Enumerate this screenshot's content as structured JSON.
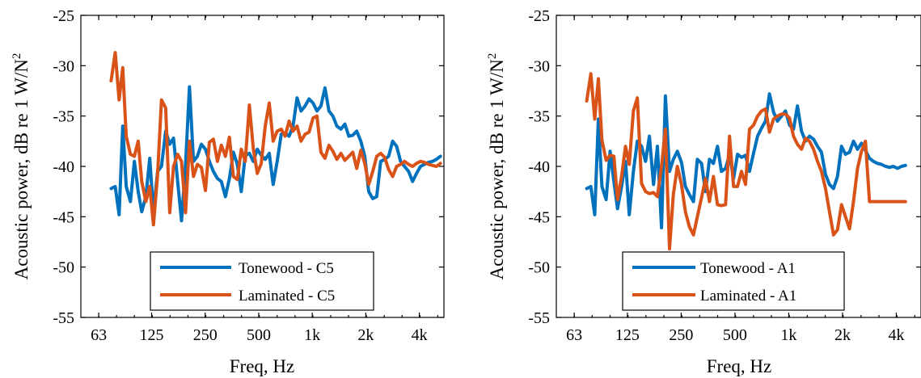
{
  "colors": {
    "tonewood": "#0072BD",
    "laminated": "#D95319"
  },
  "chart_data": [
    {
      "type": "line",
      "xscale": "log",
      "xlabel": "Freq, Hz",
      "ylabel": "Acoustic power, dB re 1 W/N",
      "ylabel_superscript": "2",
      "xlim": [
        50,
        5500
      ],
      "ylim": [
        -55,
        -25
      ],
      "xticks": [
        63,
        125,
        250,
        500,
        1000,
        2000,
        4000
      ],
      "xtick_labels": [
        "63",
        "125",
        "250",
        "500",
        "1k",
        "2k",
        "4k"
      ],
      "yticks": [
        -55,
        -50,
        -45,
        -40,
        -35,
        -30,
        -25
      ],
      "ytick_labels": [
        "-55",
        "-50",
        "-45",
        "-40",
        "-35",
        "-30",
        "-25"
      ],
      "grid": false,
      "legend_position": "bottom-center",
      "series": [
        {
          "name": "Tonewood - C5",
          "color": "#0072BD",
          "x": [
            74,
            78,
            82,
            86,
            90,
            95,
            100,
            105,
            110,
            116,
            122,
            128,
            135,
            142,
            150,
            158,
            166,
            175,
            184,
            194,
            204,
            215,
            226,
            238,
            251,
            264,
            278,
            293,
            308,
            325,
            342,
            360,
            379,
            399,
            420,
            443,
            466,
            491,
            517,
            544,
            573,
            603,
            635,
            669,
            704,
            741,
            780,
            822,
            865,
            911,
            959,
            1010,
            1063,
            1119,
            1179,
            1241,
            1307,
            1376,
            1449,
            1525,
            1606,
            1691,
            1780,
            1875,
            1974,
            2078,
            2188,
            2304,
            2426,
            2554,
            2689,
            2832,
            2981,
            3139,
            3305,
            3480,
            3664,
            3858,
            4062,
            4277,
            4503,
            4741,
            4992,
            5256
          ],
          "y": [
            -42.2,
            -42.0,
            -44.8,
            -36.0,
            -42.0,
            -43.5,
            -39.5,
            -42.5,
            -44.5,
            -43.0,
            -39.2,
            -44.5,
            -40.5,
            -40.0,
            -36.5,
            -37.8,
            -37.2,
            -41.5,
            -45.4,
            -39.8,
            -32.1,
            -39.5,
            -39.0,
            -37.8,
            -38.3,
            -39.5,
            -40.5,
            -41.2,
            -41.5,
            -43.0,
            -41.2,
            -38.6,
            -39.8,
            -42.5,
            -38.9,
            -38.7,
            -39.5,
            -38.3,
            -38.9,
            -39.3,
            -38.7,
            -41.8,
            -39.5,
            -36.8,
            -36.7,
            -37.0,
            -36.0,
            -33.2,
            -34.5,
            -34.0,
            -33.3,
            -33.7,
            -34.5,
            -34.0,
            -32.2,
            -34.5,
            -35.0,
            -36.0,
            -36.3,
            -35.8,
            -37.0,
            -36.9,
            -36.5,
            -37.5,
            -39.0,
            -42.5,
            -43.2,
            -43.0,
            -39.5,
            -39.3,
            -39.0,
            -37.5,
            -38.0,
            -39.5,
            -40.0,
            -40.5,
            -41.5,
            -40.7,
            -40.0,
            -39.8,
            -39.6,
            -39.5,
            -39.3,
            -39.0
          ],
          "_note_unused": null
        },
        {
          "name": "Laminated - C5",
          "color": "#D95319",
          "x": [
            74,
            78,
            82,
            86,
            90,
            95,
            100,
            105,
            110,
            116,
            122,
            128,
            135,
            142,
            150,
            158,
            166,
            175,
            184,
            194,
            204,
            215,
            226,
            238,
            251,
            264,
            278,
            293,
            308,
            325,
            342,
            360,
            379,
            399,
            420,
            443,
            466,
            491,
            517,
            544,
            573,
            603,
            635,
            669,
            704,
            741,
            780,
            822,
            865,
            911,
            959,
            1010,
            1063,
            1119,
            1179,
            1241,
            1307,
            1376,
            1449,
            1525,
            1606,
            1691,
            1780,
            1875,
            1974,
            2078,
            2188,
            2304,
            2426,
            2554,
            2689,
            2832,
            2981,
            3139,
            3305,
            3480,
            3664,
            3858,
            4062,
            4277,
            4503,
            4741,
            4992,
            5256
          ],
          "y": [
            -31.5,
            -28.7,
            -33.4,
            -30.2,
            -37.0,
            -38.8,
            -39.0,
            -37.5,
            -41.5,
            -43.5,
            -42.0,
            -45.8,
            -40.8,
            -33.4,
            -34.2,
            -44.6,
            -40.0,
            -38.8,
            -39.5,
            -44.6,
            -37.5,
            -41.0,
            -39.8,
            -40.1,
            -42.4,
            -37.6,
            -37.3,
            -39.5,
            -37.9,
            -39.0,
            -37.1,
            -41.0,
            -41.3,
            -38.3,
            -39.5,
            -33.9,
            -38.2,
            -40.7,
            -39.7,
            -36.0,
            -33.7,
            -37.5,
            -36.5,
            -36.3,
            -37.0,
            -35.5,
            -36.5,
            -36.0,
            -37.5,
            -36.8,
            -36.6,
            -35.2,
            -35.0,
            -38.6,
            -39.2,
            -37.9,
            -38.5,
            -39.3,
            -38.7,
            -39.4,
            -39.0,
            -38.6,
            -40.2,
            -38.4,
            -39.7,
            -41.8,
            -40.5,
            -39.0,
            -38.7,
            -39.1,
            -40.3,
            -41.0,
            -40.0,
            -39.8,
            -39.5,
            -39.8,
            -40.0,
            -39.7,
            -39.5,
            -39.6,
            -39.8,
            -39.9,
            -40.0,
            -39.7
          ]
        }
      ]
    },
    {
      "type": "line",
      "xscale": "log",
      "xlabel": "Freq, Hz",
      "ylabel": "Acoustic power, dB re 1 W/N",
      "ylabel_superscript": "2",
      "xlim": [
        50,
        5500
      ],
      "ylim": [
        -55,
        -25
      ],
      "xticks": [
        63,
        125,
        250,
        500,
        1000,
        2000,
        4000
      ],
      "xtick_labels": [
        "63",
        "125",
        "250",
        "500",
        "1k",
        "2k",
        "4k"
      ],
      "yticks": [
        -55,
        -50,
        -45,
        -40,
        -35,
        -30,
        -25
      ],
      "ytick_labels": [
        "-55",
        "-50",
        "-45",
        "-40",
        "-35",
        "-30",
        "-25"
      ],
      "grid": false,
      "legend_position": "bottom-center",
      "series": [
        {
          "name": "Tonewood - A1",
          "color": "#0072BD",
          "x": [
            74,
            78,
            82,
            86,
            90,
            95,
            100,
            105,
            110,
            116,
            122,
            128,
            135,
            142,
            150,
            158,
            166,
            175,
            184,
            194,
            204,
            215,
            226,
            238,
            251,
            264,
            278,
            293,
            308,
            325,
            342,
            360,
            379,
            399,
            420,
            443,
            466,
            491,
            517,
            544,
            573,
            603,
            635,
            669,
            704,
            741,
            780,
            822,
            865,
            911,
            959,
            1010,
            1063,
            1119,
            1179,
            1241,
            1307,
            1376,
            1449,
            1525,
            1606,
            1691,
            1780,
            1875,
            1974,
            2078,
            2188,
            2304,
            2426,
            2554,
            2689,
            2832,
            2981,
            3139,
            3305,
            3480,
            3664,
            3858,
            4062,
            4277,
            4503,
            4741,
            4992
          ],
          "y": [
            -42.2,
            -42.0,
            -44.8,
            -35.3,
            -42.0,
            -43.3,
            -38.5,
            -41.5,
            -44.2,
            -42.0,
            -39.5,
            -44.8,
            -40.5,
            -37.5,
            -38.0,
            -39.5,
            -37.0,
            -41.8,
            -38.0,
            -46.1,
            -33.0,
            -40.5,
            -39.3,
            -38.5,
            -39.6,
            -42.0,
            -42.8,
            -43.5,
            -39.3,
            -39.7,
            -42.5,
            -39.3,
            -39.7,
            -38.0,
            -40.5,
            -40.2,
            -38.8,
            -41.2,
            -38.8,
            -39.1,
            -38.9,
            -40.5,
            -38.7,
            -37.0,
            -36.2,
            -35.5,
            -32.8,
            -34.6,
            -35.5,
            -35.0,
            -34.5,
            -35.9,
            -36.3,
            -34.0,
            -36.5,
            -37.5,
            -37.0,
            -37.3,
            -38.0,
            -38.6,
            -40.8,
            -41.8,
            -42.2,
            -41.0,
            -38.0,
            -38.8,
            -38.6,
            -37.5,
            -38.3,
            -37.7,
            -38.4,
            -39.2,
            -39.5,
            -39.7,
            -39.8,
            -40.0,
            -40.1,
            -40.0,
            -40.2,
            -40.0,
            -39.9,
            -40.0,
            -40.1
          ],
          "visible_x_max": 4650
        },
        {
          "name": "Laminated - A1",
          "color": "#D95319",
          "x": [
            74,
            78,
            82,
            86,
            90,
            95,
            100,
            105,
            110,
            116,
            122,
            128,
            135,
            142,
            150,
            158,
            166,
            175,
            184,
            194,
            204,
            215,
            226,
            238,
            251,
            264,
            278,
            293,
            308,
            325,
            342,
            360,
            379,
            399,
            420,
            443,
            466,
            491,
            517,
            544,
            573,
            603,
            635,
            669,
            704,
            741,
            780,
            822,
            865,
            911,
            959,
            1010,
            1063,
            1119,
            1179,
            1241,
            1307,
            1376,
            1449,
            1525,
            1606,
            1691,
            1780,
            1875,
            1974,
            2078,
            2188,
            2304,
            2426,
            2554,
            2689,
            2832,
            2981,
            3139,
            3305,
            3480,
            3664,
            3858,
            4062,
            4277,
            4503,
            4741,
            4992
          ],
          "y": [
            -33.5,
            -30.8,
            -35.3,
            -31.3,
            -37.4,
            -39.4,
            -38.9,
            -39.0,
            -43.3,
            -41.0,
            -38.0,
            -39.8,
            -34.5,
            -33.2,
            -41.7,
            -42.5,
            -42.7,
            -42.6,
            -43.0,
            -40.0,
            -36.3,
            -48.2,
            -42.8,
            -40.0,
            -41.8,
            -44.5,
            -46.0,
            -46.8,
            -45.0,
            -43.1,
            -41.2,
            -43.5,
            -41.0,
            -43.8,
            -43.9,
            -43.8,
            -37.0,
            -42.0,
            -42.0,
            -40.5,
            -41.8,
            -36.3,
            -35.9,
            -35.0,
            -34.5,
            -34.3,
            -36.6,
            -35.3,
            -35.0,
            -34.8,
            -34.8,
            -35.2,
            -37.0,
            -37.8,
            -38.3,
            -37.2,
            -37.5,
            -38.3,
            -39.5,
            -40.5,
            -42.2,
            -44.5,
            -46.8,
            -46.3,
            -43.8,
            -45.0,
            -46.2,
            -43.5,
            -40.2,
            -38.5,
            -37.5,
            -43.5,
            -43.5,
            -43.5,
            -43.5,
            -43.5,
            -43.5,
            -43.5,
            -43.5,
            -43.5,
            -43.5,
            -43.5,
            -43.5
          ],
          "visible_x_max": 4650
        }
      ]
    }
  ]
}
